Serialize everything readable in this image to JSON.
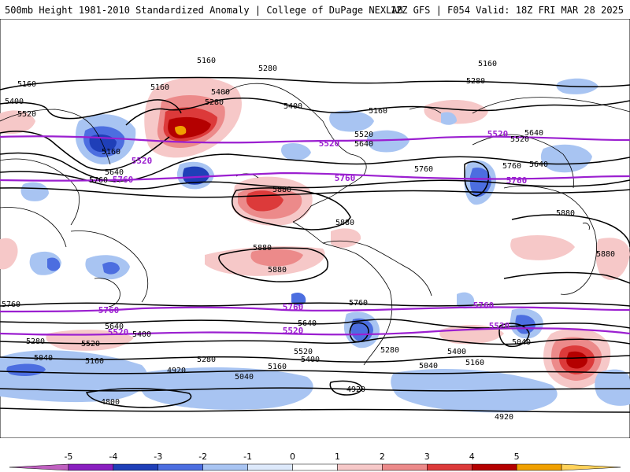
{
  "header": {
    "title_left": "500mb Height 1981-2010 Standardized Anomaly | College of DuPage NEXLAB",
    "title_right": "12Z GFS | F054 Valid: 18Z FRI MAR 28 2025"
  },
  "colorbar": {
    "ticks": [
      "-5",
      "-4",
      "-3",
      "-2",
      "-1",
      "0",
      "1",
      "2",
      "3",
      "4",
      "5"
    ],
    "colors": [
      "#c060c0",
      "#8a1fc0",
      "#1f3fb8",
      "#4c6ee0",
      "#a8c4f2",
      "#dde9fb",
      "#ffffff",
      "#f6c8c8",
      "#ec8a8a",
      "#dc3a3a",
      "#b40000",
      "#f0a000",
      "#ffd25a"
    ]
  },
  "contours": {
    "black_labels": [
      "5160",
      "5280",
      "5160",
      "5400",
      "5520",
      "5160",
      "5400",
      "5280",
      "5160",
      "5640",
      "5760",
      "5880",
      "5880",
      "5880",
      "5880",
      "5760",
      "5640",
      "5400",
      "5520",
      "5280",
      "5040",
      "5160",
      "4920",
      "4800",
      "5040",
      "5160",
      "5280",
      "5400",
      "5520",
      "5640",
      "5760",
      "4920",
      "5040",
      "5160",
      "5400",
      "5280",
      "5160",
      "4920",
      "5520",
      "5640",
      "5640",
      "5760",
      "5880",
      "5880",
      "5400",
      "5280",
      "5160",
      "5760",
      "5640",
      "5520",
      "5040"
    ],
    "purple_labels": [
      "5520",
      "5760",
      "5520",
      "5760",
      "5520",
      "5760",
      "5760",
      "5760",
      "5760",
      "5520",
      "5520",
      "5520"
    ]
  }
}
